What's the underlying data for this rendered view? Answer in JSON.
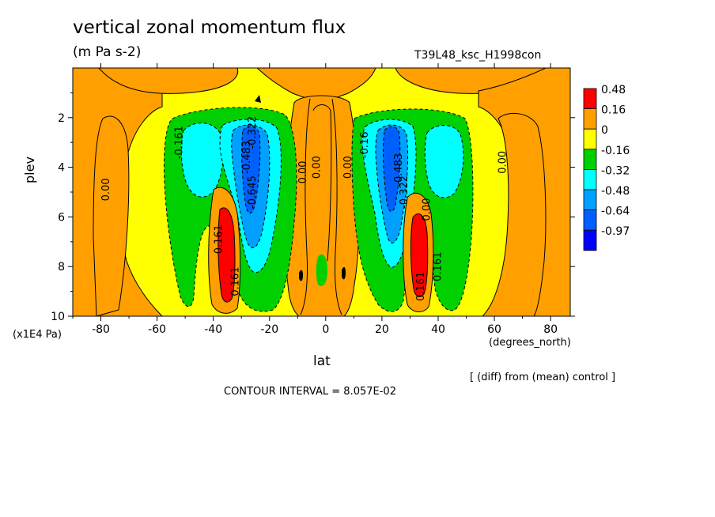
{
  "header": {
    "title": "vertical zonal momentum flux",
    "units": "(m Pa s-2)",
    "run_id": "T39L48_ksc_H1998con"
  },
  "footer": {
    "diff_note": "[ (diff) from (mean) control ]",
    "contour_interval_label": "CONTOUR INTERVAL =",
    "contour_interval_value": "8.057E-02"
  },
  "chart_data": {
    "type": "contour",
    "xlabel": "lat",
    "x_unit": "(degrees_north)",
    "ylabel": "plev",
    "y_unit": "(x1E4 Pa)",
    "xlim": [
      -90,
      87
    ],
    "ylim": [
      10,
      0
    ],
    "x_ticks": [
      -80,
      -60,
      -40,
      -20,
      0,
      20,
      40,
      60,
      80
    ],
    "y_ticks": [
      2,
      4,
      6,
      8,
      10
    ],
    "legend": {
      "position": "right",
      "levels": [
        "0.48",
        "0.16",
        "0",
        "-0.16",
        "-0.32",
        "-0.48",
        "-0.64",
        "-0.97"
      ],
      "colors": [
        "#ff0000",
        "#ffa000",
        "#ffff00",
        "#00d000",
        "#00ffff",
        "#00a0ff",
        "#0060ff",
        "#0000ff"
      ]
    },
    "contour_labels": [
      {
        "text": "0.00",
        "lat": -77,
        "p": 4.9
      },
      {
        "text": "-0.161",
        "lat": -51,
        "p": 3.0
      },
      {
        "text": "-0.322",
        "lat": -25,
        "p": 2.6
      },
      {
        "text": "-0.483",
        "lat": -27,
        "p": 3.6
      },
      {
        "text": "-0.645",
        "lat": -25,
        "p": 5.0
      },
      {
        "text": "0.00",
        "lat": -7,
        "p": 4.2
      },
      {
        "text": "0.00",
        "lat": -2,
        "p": 4.0
      },
      {
        "text": "0.161",
        "lat": -37,
        "p": 6.9
      },
      {
        "text": "0.161",
        "lat": -31,
        "p": 8.6
      },
      {
        "text": "0.00",
        "lat": 9,
        "p": 4.0
      },
      {
        "text": "-0.16",
        "lat": 15,
        "p": 3.1
      },
      {
        "text": "-0.483",
        "lat": 27,
        "p": 4.1
      },
      {
        "text": "-0.322",
        "lat": 29,
        "p": 5.0
      },
      {
        "text": "0.00",
        "lat": 37,
        "p": 5.7
      },
      {
        "text": "0.161",
        "lat": 41,
        "p": 8.0
      },
      {
        "text": "0.161",
        "lat": 35,
        "p": 8.8
      },
      {
        "text": "0.00",
        "lat": 64,
        "p": 3.8
      }
    ],
    "extrema": {
      "min_near": [
        {
          "lat": -27,
          "p": 4.0
        },
        {
          "lat": 25,
          "p": 4.0
        }
      ],
      "max_near": [
        {
          "lat": -33,
          "p": 7.8
        },
        {
          "lat": 34,
          "p": 7.6
        }
      ]
    }
  }
}
